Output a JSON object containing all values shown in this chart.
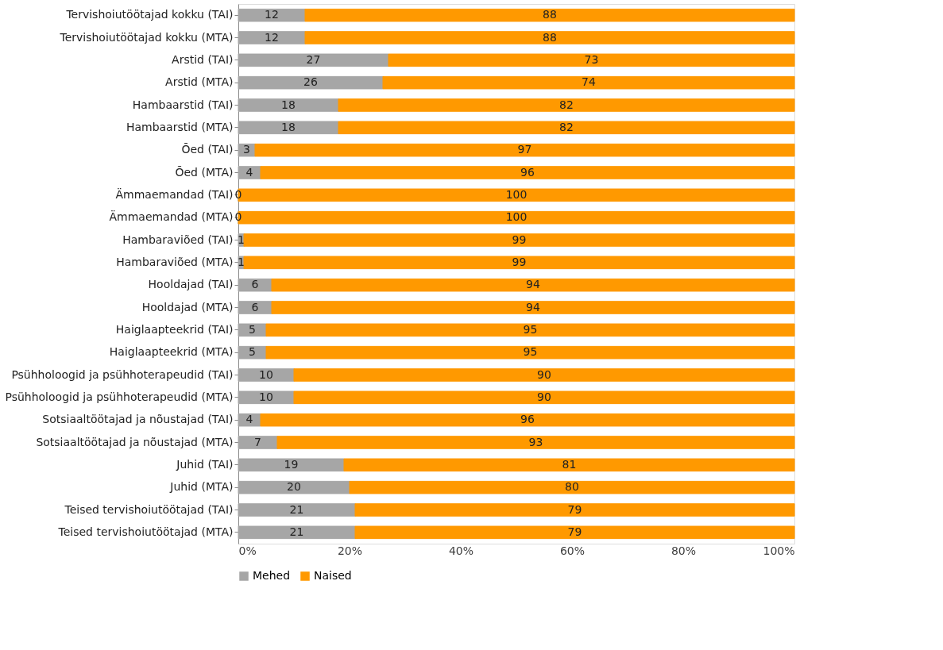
{
  "chart_data": {
    "type": "bar",
    "orientation": "horizontal",
    "stacked": true,
    "data_labels": true,
    "grid": false,
    "legend": "bottom",
    "categories": [
      "Tervishoiutöötajad kokku (TAI)",
      "Tervishoiutöötajad kokku (MTA)",
      "Arstid (TAI)",
      "Arstid (MTA)",
      "Hambaarstid (TAI)",
      "Hambaarstid (MTA)",
      "Õed (TAI)",
      "Õed (MTA)",
      "Ämmaemandad (TAI)",
      "Ämmaemandad (MTA)",
      "Hambaraviõed (TAI)",
      "Hambaraviõed (MTA)",
      "Hooldajad (TAI)",
      "Hooldajad (MTA)",
      "Haiglaapteekrid (TAI)",
      "Haiglaapteekrid (MTA)",
      "Psühholoogid ja psühhoterapeudid (TAI)",
      "Psühholoogid ja psühhoterapeudid (MTA)",
      "Sotsiaaltöötajad ja nõustajad (TAI)",
      "Sotsiaaltöötajad ja nõustajad (MTA)",
      "Juhid (TAI)",
      "Juhid (MTA)",
      "Teised tervishoiutöötajad (TAI)",
      "Teised tervishoiutöötajad (MTA)"
    ],
    "series": [
      {
        "name": "Mehed",
        "color": "#a6a6a6",
        "values": [
          12,
          12,
          27,
          26,
          18,
          18,
          3,
          4,
          0,
          0,
          1,
          1,
          6,
          6,
          5,
          5,
          10,
          10,
          4,
          7,
          19,
          20,
          21,
          21
        ]
      },
      {
        "name": "Naised",
        "color": "#ff9900",
        "values": [
          88,
          88,
          73,
          74,
          82,
          82,
          97,
          96,
          100,
          100,
          99,
          99,
          94,
          94,
          95,
          95,
          90,
          90,
          96,
          93,
          81,
          80,
          79,
          79
        ]
      }
    ],
    "xlim": [
      0,
      100
    ],
    "xticks": [
      {
        "value": 0,
        "label": "0%"
      },
      {
        "value": 20,
        "label": "20%"
      },
      {
        "value": 40,
        "label": "40%"
      },
      {
        "value": 60,
        "label": "60%"
      },
      {
        "value": 80,
        "label": "80%"
      },
      {
        "value": 100,
        "label": "100%"
      }
    ]
  }
}
